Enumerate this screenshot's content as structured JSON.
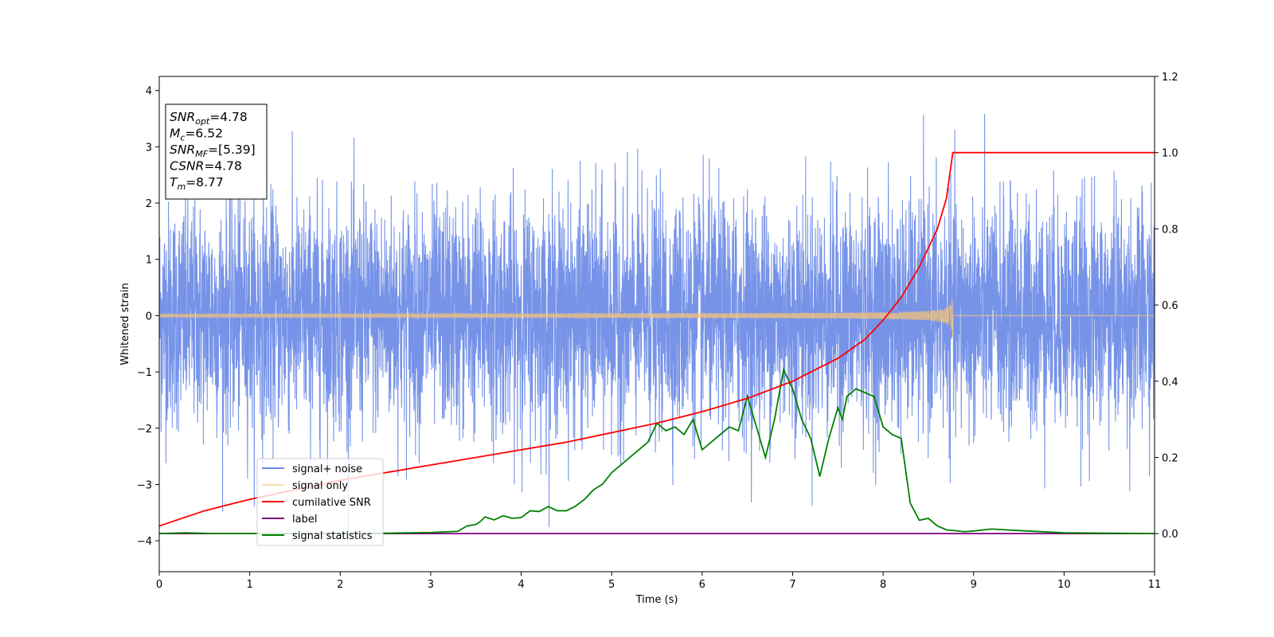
{
  "chart_data": {
    "type": "line",
    "xlabel": "Time (s)",
    "ylabel": "Whitened strain",
    "xlim": [
      0,
      11
    ],
    "ylim_left": [
      -4.55,
      4.25
    ],
    "ylim_right": [
      -0.1,
      1.2
    ],
    "x_ticks": [
      "0",
      "1",
      "2",
      "3",
      "4",
      "5",
      "6",
      "7",
      "8",
      "9",
      "10",
      "11"
    ],
    "y_ticks_left": [
      "4",
      "3",
      "2",
      "1",
      "0",
      "−1",
      "−2",
      "−3",
      "−4"
    ],
    "y_ticks_right": [
      "1.2",
      "1.0",
      "0.8",
      "0.6",
      "0.4",
      "0.2",
      "0.0"
    ],
    "legend_position": "lower-left",
    "annotation": {
      "lines": [
        {
          "main": "SNR",
          "sub": "opt",
          "value": "=4.78"
        },
        {
          "main": "M",
          "sub": "c",
          "value": "=6.52"
        },
        {
          "main": "SNR",
          "sub": "MF",
          "value": "=[5.39]"
        },
        {
          "main": "CSNR",
          "sub": "",
          "value": "=4.78"
        },
        {
          "main": "T",
          "sub": "m",
          "value": "=8.77"
        }
      ]
    },
    "series": [
      {
        "name": "signal+ noise",
        "color": "#6a8ae6",
        "axis": "left",
        "description_stats": {
          "std": 1.0,
          "min": -4.15,
          "max": 3.87,
          "t_start": 0,
          "t_end": 11
        }
      },
      {
        "name": "signal only",
        "color": "#f5c37a",
        "axis": "left",
        "chirp_end_time": 8.77,
        "peak_amplitude": 0.47
      },
      {
        "name": "cumilative SNR",
        "color": "#ff0000",
        "axis": "right",
        "points": [
          [
            0,
            0.02
          ],
          [
            0.5,
            0.06
          ],
          [
            1,
            0.09
          ],
          [
            1.5,
            0.115
          ],
          [
            2,
            0.14
          ],
          [
            2.5,
            0.16
          ],
          [
            3,
            0.18
          ],
          [
            3.5,
            0.2
          ],
          [
            4,
            0.22
          ],
          [
            4.5,
            0.24
          ],
          [
            5,
            0.265
          ],
          [
            5.5,
            0.29
          ],
          [
            6,
            0.32
          ],
          [
            6.5,
            0.355
          ],
          [
            7,
            0.4
          ],
          [
            7.5,
            0.46
          ],
          [
            7.8,
            0.51
          ],
          [
            8,
            0.56
          ],
          [
            8.2,
            0.62
          ],
          [
            8.4,
            0.7
          ],
          [
            8.6,
            0.8
          ],
          [
            8.7,
            0.88
          ],
          [
            8.77,
            1.0
          ],
          [
            11,
            1.0
          ]
        ]
      },
      {
        "name": "label",
        "color": "#800080",
        "axis": "right",
        "points": [
          [
            0,
            0.0
          ],
          [
            11,
            0.0
          ]
        ]
      },
      {
        "name": "signal statistics",
        "color": "#008000",
        "axis": "right",
        "points": [
          [
            0,
            0.0
          ],
          [
            0.3,
            0.002
          ],
          [
            0.6,
            0.0
          ],
          [
            1,
            0.0
          ],
          [
            1.5,
            0.0
          ],
          [
            2,
            0.0
          ],
          [
            2.5,
            0.001
          ],
          [
            3,
            0.003
          ],
          [
            3.3,
            0.006
          ],
          [
            3.4,
            0.02
          ],
          [
            3.5,
            0.024
          ],
          [
            3.55,
            0.032
          ],
          [
            3.6,
            0.044
          ],
          [
            3.7,
            0.036
          ],
          [
            3.8,
            0.047
          ],
          [
            3.9,
            0.04
          ],
          [
            4.0,
            0.042
          ],
          [
            4.1,
            0.06
          ],
          [
            4.2,
            0.058
          ],
          [
            4.3,
            0.071
          ],
          [
            4.4,
            0.06
          ],
          [
            4.5,
            0.06
          ],
          [
            4.6,
            0.072
          ],
          [
            4.7,
            0.09
          ],
          [
            4.8,
            0.115
          ],
          [
            4.9,
            0.13
          ],
          [
            5.0,
            0.16
          ],
          [
            5.1,
            0.18
          ],
          [
            5.2,
            0.2
          ],
          [
            5.3,
            0.22
          ],
          [
            5.4,
            0.24
          ],
          [
            5.5,
            0.29
          ],
          [
            5.6,
            0.27
          ],
          [
            5.7,
            0.28
          ],
          [
            5.8,
            0.26
          ],
          [
            5.9,
            0.3
          ],
          [
            6.0,
            0.22
          ],
          [
            6.1,
            0.24
          ],
          [
            6.2,
            0.26
          ],
          [
            6.3,
            0.28
          ],
          [
            6.4,
            0.27
          ],
          [
            6.5,
            0.36
          ],
          [
            6.6,
            0.28
          ],
          [
            6.7,
            0.2
          ],
          [
            6.8,
            0.3
          ],
          [
            6.9,
            0.43
          ],
          [
            7.0,
            0.38
          ],
          [
            7.1,
            0.3
          ],
          [
            7.2,
            0.25
          ],
          [
            7.3,
            0.15
          ],
          [
            7.35,
            0.2
          ],
          [
            7.4,
            0.25
          ],
          [
            7.5,
            0.33
          ],
          [
            7.55,
            0.3
          ],
          [
            7.6,
            0.36
          ],
          [
            7.7,
            0.38
          ],
          [
            7.8,
            0.37
          ],
          [
            7.9,
            0.36
          ],
          [
            8.0,
            0.28
          ],
          [
            8.1,
            0.26
          ],
          [
            8.2,
            0.25
          ],
          [
            8.3,
            0.08
          ],
          [
            8.4,
            0.035
          ],
          [
            8.5,
            0.04
          ],
          [
            8.6,
            0.02
          ],
          [
            8.7,
            0.01
          ],
          [
            8.9,
            0.005
          ],
          [
            9.0,
            0.007
          ],
          [
            9.2,
            0.012
          ],
          [
            9.5,
            0.008
          ],
          [
            10,
            0.002
          ],
          [
            10.5,
            0.001
          ],
          [
            11,
            0.0
          ]
        ]
      }
    ]
  }
}
